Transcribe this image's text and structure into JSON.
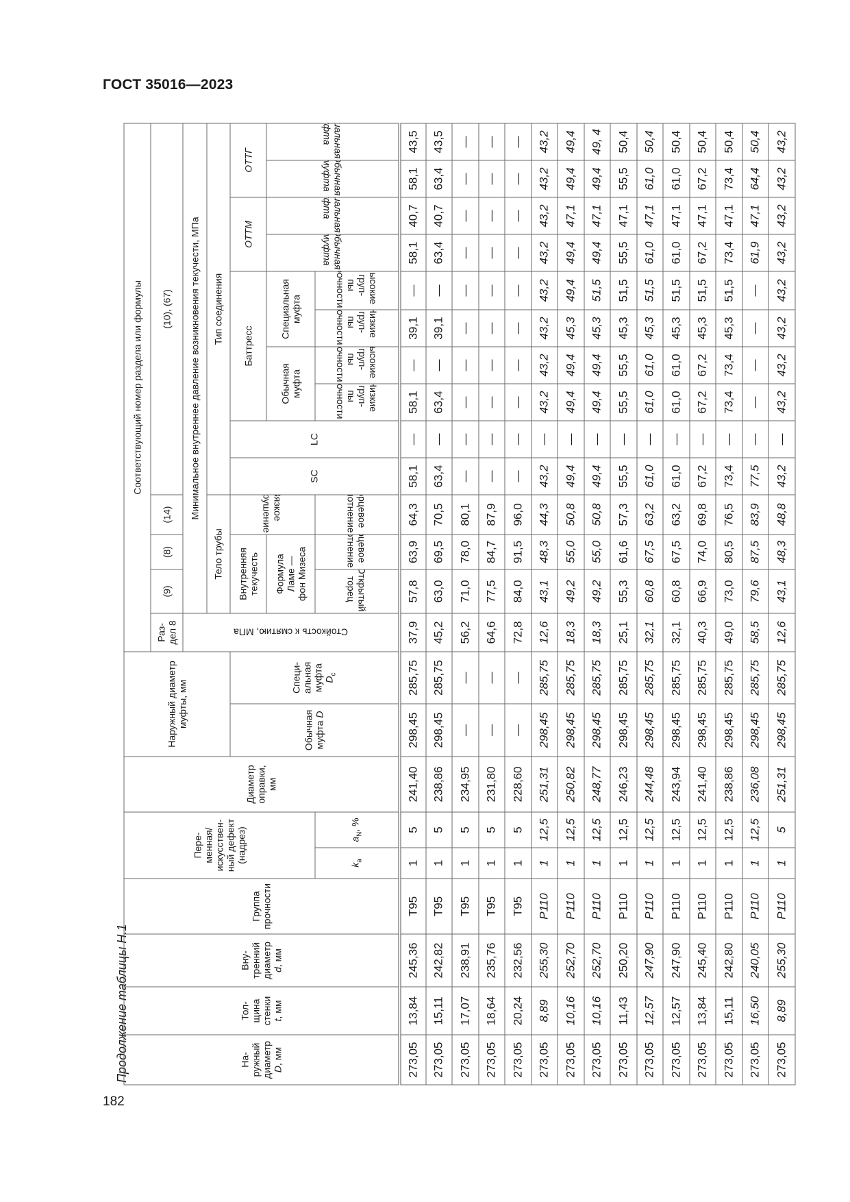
{
  "document": {
    "title": "ГОСТ 35016—2023",
    "page_number": "182",
    "caption": "Продолжение таблицы Н.1"
  },
  "header": {
    "outer_diameter": {
      "text": "На-\nружный\nдиаметр",
      "symbol": "D",
      "unit": ", мм"
    },
    "wall_thickness": {
      "text": "Тол-\nщина\nстенки",
      "symbol": "t",
      "unit": ", мм"
    },
    "inner_diameter": {
      "text": "Вну-\nтренний\nдиаметр",
      "symbol": "d",
      "unit": ", мм"
    },
    "strength_group": "Группа\nпрочности",
    "defect": "Пере-\nменная/\nискусствен-\nный дефект\n(надрез)",
    "ka": {
      "symbol": "k",
      "sub": "a"
    },
    "an": {
      "symbol": "a",
      "sub": "N",
      "unit": ", %"
    },
    "mandrel_diameter": "Диаметр\nоправки,\nмм",
    "coupling_diameter": "Наружный диаметр\nмуфты, мм",
    "coupling_regular": {
      "text": "Обычная\nмуфта",
      "symbol": "D"
    },
    "coupling_special": {
      "text": "Специ-\nальная\nмуфта",
      "symbol": "D",
      "sub": "c"
    },
    "section_formula": "Соответствующий номер раздела или формулы",
    "section8": "Раз-\nдел 8",
    "f9": "(9)",
    "f8": "(8)",
    "f14": "(14)",
    "f10_67": "(10), (67)",
    "collapse": "Стойкость к смятию, МПа",
    "min_pressure": "Минимальное внутреннее давление возникновения текучести, МПа",
    "pipe_body": "Тело трубы",
    "connection_type": "Тип соединения",
    "internal_yield": "Внутренняя\nтекучесть",
    "ductile_rupture": "Вязкое\nразрушение",
    "lame": "Формула\nЛаме —\nфон Мизеса",
    "open_end": "Открытый\nторец",
    "end_seal_8": "Торцевое\nуплотнение",
    "end_seal_14": "Торцевое\nуплотнение",
    "sc": "SC",
    "lc": "LC",
    "buttress": "Баттресс",
    "buttress_regular": "Обычная\nмуфта",
    "buttress_special": "Специальная\nмуфта",
    "low_groups_1": "Низкие груп-\nпы прочности",
    "high_groups_1": "Высокие груп-\nпы прочности",
    "low_groups_2": "Низкие груп-\nпы прочности",
    "high_groups_2": "Высокие груп-\nпы прочности",
    "ottm": "ОТТМ",
    "ottg": "ОТТГ",
    "ottm_regular": "Обычная муфта",
    "ottm_special": "Специальная муфта",
    "ottg_regular": "Обычная муфта",
    "ottg_special": "Специальная муфта"
  },
  "table": {
    "rows": [
      {
        "italic": false,
        "cells": [
          "273,05",
          "13,84",
          "245,36",
          "T95",
          "1",
          "5",
          "241,40",
          "298,45",
          "285,75",
          "37,9",
          "57,8",
          "63,9",
          "64,3",
          "58,1",
          "—",
          "58,1",
          "—",
          "39,1",
          "—",
          "58,1",
          "40,7",
          "58,1",
          "43,5"
        ]
      },
      {
        "italic": false,
        "cells": [
          "273,05",
          "15,11",
          "242,82",
          "T95",
          "1",
          "5",
          "238,86",
          "298,45",
          "285,75",
          "45,2",
          "63,0",
          "69,5",
          "70,5",
          "63,4",
          "—",
          "63,4",
          "—",
          "39,1",
          "—",
          "63,4",
          "40,7",
          "63,4",
          "43,5"
        ]
      },
      {
        "italic": false,
        "cells": [
          "273,05",
          "17,07",
          "238,91",
          "T95",
          "1",
          "5",
          "234,95",
          "—",
          "—",
          "56,2",
          "71,0",
          "78,0",
          "80,1",
          "—",
          "—",
          "—",
          "—",
          "—",
          "—",
          "—",
          "—",
          "—",
          "—"
        ]
      },
      {
        "italic": false,
        "cells": [
          "273,05",
          "18,64",
          "235,76",
          "T95",
          "1",
          "5",
          "231,80",
          "—",
          "—",
          "64,6",
          "77,5",
          "84,7",
          "87,9",
          "—",
          "—",
          "—",
          "—",
          "—",
          "—",
          "—",
          "—",
          "—",
          "—"
        ]
      },
      {
        "italic": false,
        "cells": [
          "273,05",
          "20,24",
          "232,56",
          "T95",
          "1",
          "5",
          "228,60",
          "—",
          "—",
          "72,8",
          "84,0",
          "91,5",
          "96,0",
          "—",
          "—",
          "—",
          "—",
          "—",
          "—",
          "—",
          "—",
          "—",
          "—"
        ]
      },
      {
        "italic": true,
        "cells": [
          "273,05",
          "8,89",
          "255,30",
          "P110",
          "1",
          "12,5",
          "251,31",
          "298,45",
          "285,75",
          "12,6",
          "43,1",
          "48,3",
          "44,3",
          "43,2",
          "—",
          "43,2",
          "43,2",
          "43,2",
          "43,2",
          "43,2",
          "43,2",
          "43,2",
          "43,2"
        ]
      },
      {
        "italic": true,
        "cells": [
          "273,05",
          "10,16",
          "252,70",
          "P110",
          "1",
          "12,5",
          "250,82",
          "298,45",
          "285,75",
          "18,3",
          "49,2",
          "55,0",
          "50,8",
          "49,4",
          "—",
          "49,4",
          "49,4",
          "45,3",
          "49,4",
          "49,4",
          "47,1",
          "49,4",
          "49,4"
        ]
      },
      {
        "italic": true,
        "cells": [
          "273,05",
          "10,16",
          "252,70",
          "P110",
          "1",
          "12,5",
          "248,77",
          "298,45",
          "285,75",
          "18,3",
          "49,2",
          "55,0",
          "50,8",
          "49,4",
          "—",
          "49,4",
          "49,4",
          "45,3",
          "51,5",
          "49,4",
          "47,1",
          "49,4",
          "49, 4"
        ]
      },
      {
        "italic": false,
        "cells": [
          "273,05",
          "11,43",
          "250,20",
          "P110",
          "1",
          "12,5",
          "246,23",
          "298,45",
          "285,75",
          "25,1",
          "55,3",
          "61,6",
          "57,3",
          "55,5",
          "—",
          "55,5",
          "55,5",
          "45,3",
          "51,5",
          "55,5",
          "47,1",
          "55,5",
          "50,4"
        ]
      },
      {
        "italic": true,
        "cells": [
          "273,05",
          "12,57",
          "247,90",
          "P110",
          "1",
          "12,5",
          "244,48",
          "298,45",
          "285,75",
          "32,1",
          "60,8",
          "67,5",
          "63,2",
          "61,0",
          "—",
          "61,0",
          "61,0",
          "45,3",
          "51,5",
          "61,0",
          "47,1",
          "61,0",
          "50,4"
        ]
      },
      {
        "italic": false,
        "cells": [
          "273,05",
          "12,57",
          "247,90",
          "P110",
          "1",
          "12,5",
          "243,94",
          "298,45",
          "285,75",
          "32,1",
          "60,8",
          "67,5",
          "63,2",
          "61,0",
          "—",
          "61,0",
          "61,0",
          "45,3",
          "51,5",
          "61,0",
          "47,1",
          "61,0",
          "50,4"
        ]
      },
      {
        "italic": false,
        "cells": [
          "273,05",
          "13,84",
          "245,40",
          "P110",
          "1",
          "12,5",
          "241,40",
          "298,45",
          "285,75",
          "40,3",
          "66,9",
          "74,0",
          "69,8",
          "67,2",
          "—",
          "67,2",
          "67,2",
          "45,3",
          "51,5",
          "67,2",
          "47,1",
          "67,2",
          "50,4"
        ]
      },
      {
        "italic": false,
        "cells": [
          "273,05",
          "15,11",
          "242,80",
          "P110",
          "1",
          "12,5",
          "238,86",
          "298,45",
          "285,75",
          "49,0",
          "73,0",
          "80,5",
          "76,5",
          "73,4",
          "—",
          "73,4",
          "73,4",
          "45,3",
          "51,5",
          "73,4",
          "47,1",
          "73,4",
          "50,4"
        ]
      },
      {
        "italic": true,
        "cells": [
          "273,05",
          "16,50",
          "240,05",
          "P110",
          "1",
          "12,5",
          "236,08",
          "298,45",
          "285,75",
          "58,5",
          "79,6",
          "87,5",
          "83,9",
          "77,5",
          "—",
          "—",
          "—",
          "—",
          "—",
          "61,9",
          "47,1",
          "64,4",
          "50,4"
        ]
      },
      {
        "italic": true,
        "cells": [
          "273,05",
          "8,89",
          "255,30",
          "P110",
          "1",
          "5",
          "251,31",
          "298,45",
          "285,75",
          "12,6",
          "43,1",
          "48,3",
          "48,8",
          "43,2",
          "—",
          "43,2",
          "43,2",
          "43,2",
          "43,2",
          "43,2",
          "43,2",
          "43,2",
          "43,2"
        ]
      }
    ]
  }
}
